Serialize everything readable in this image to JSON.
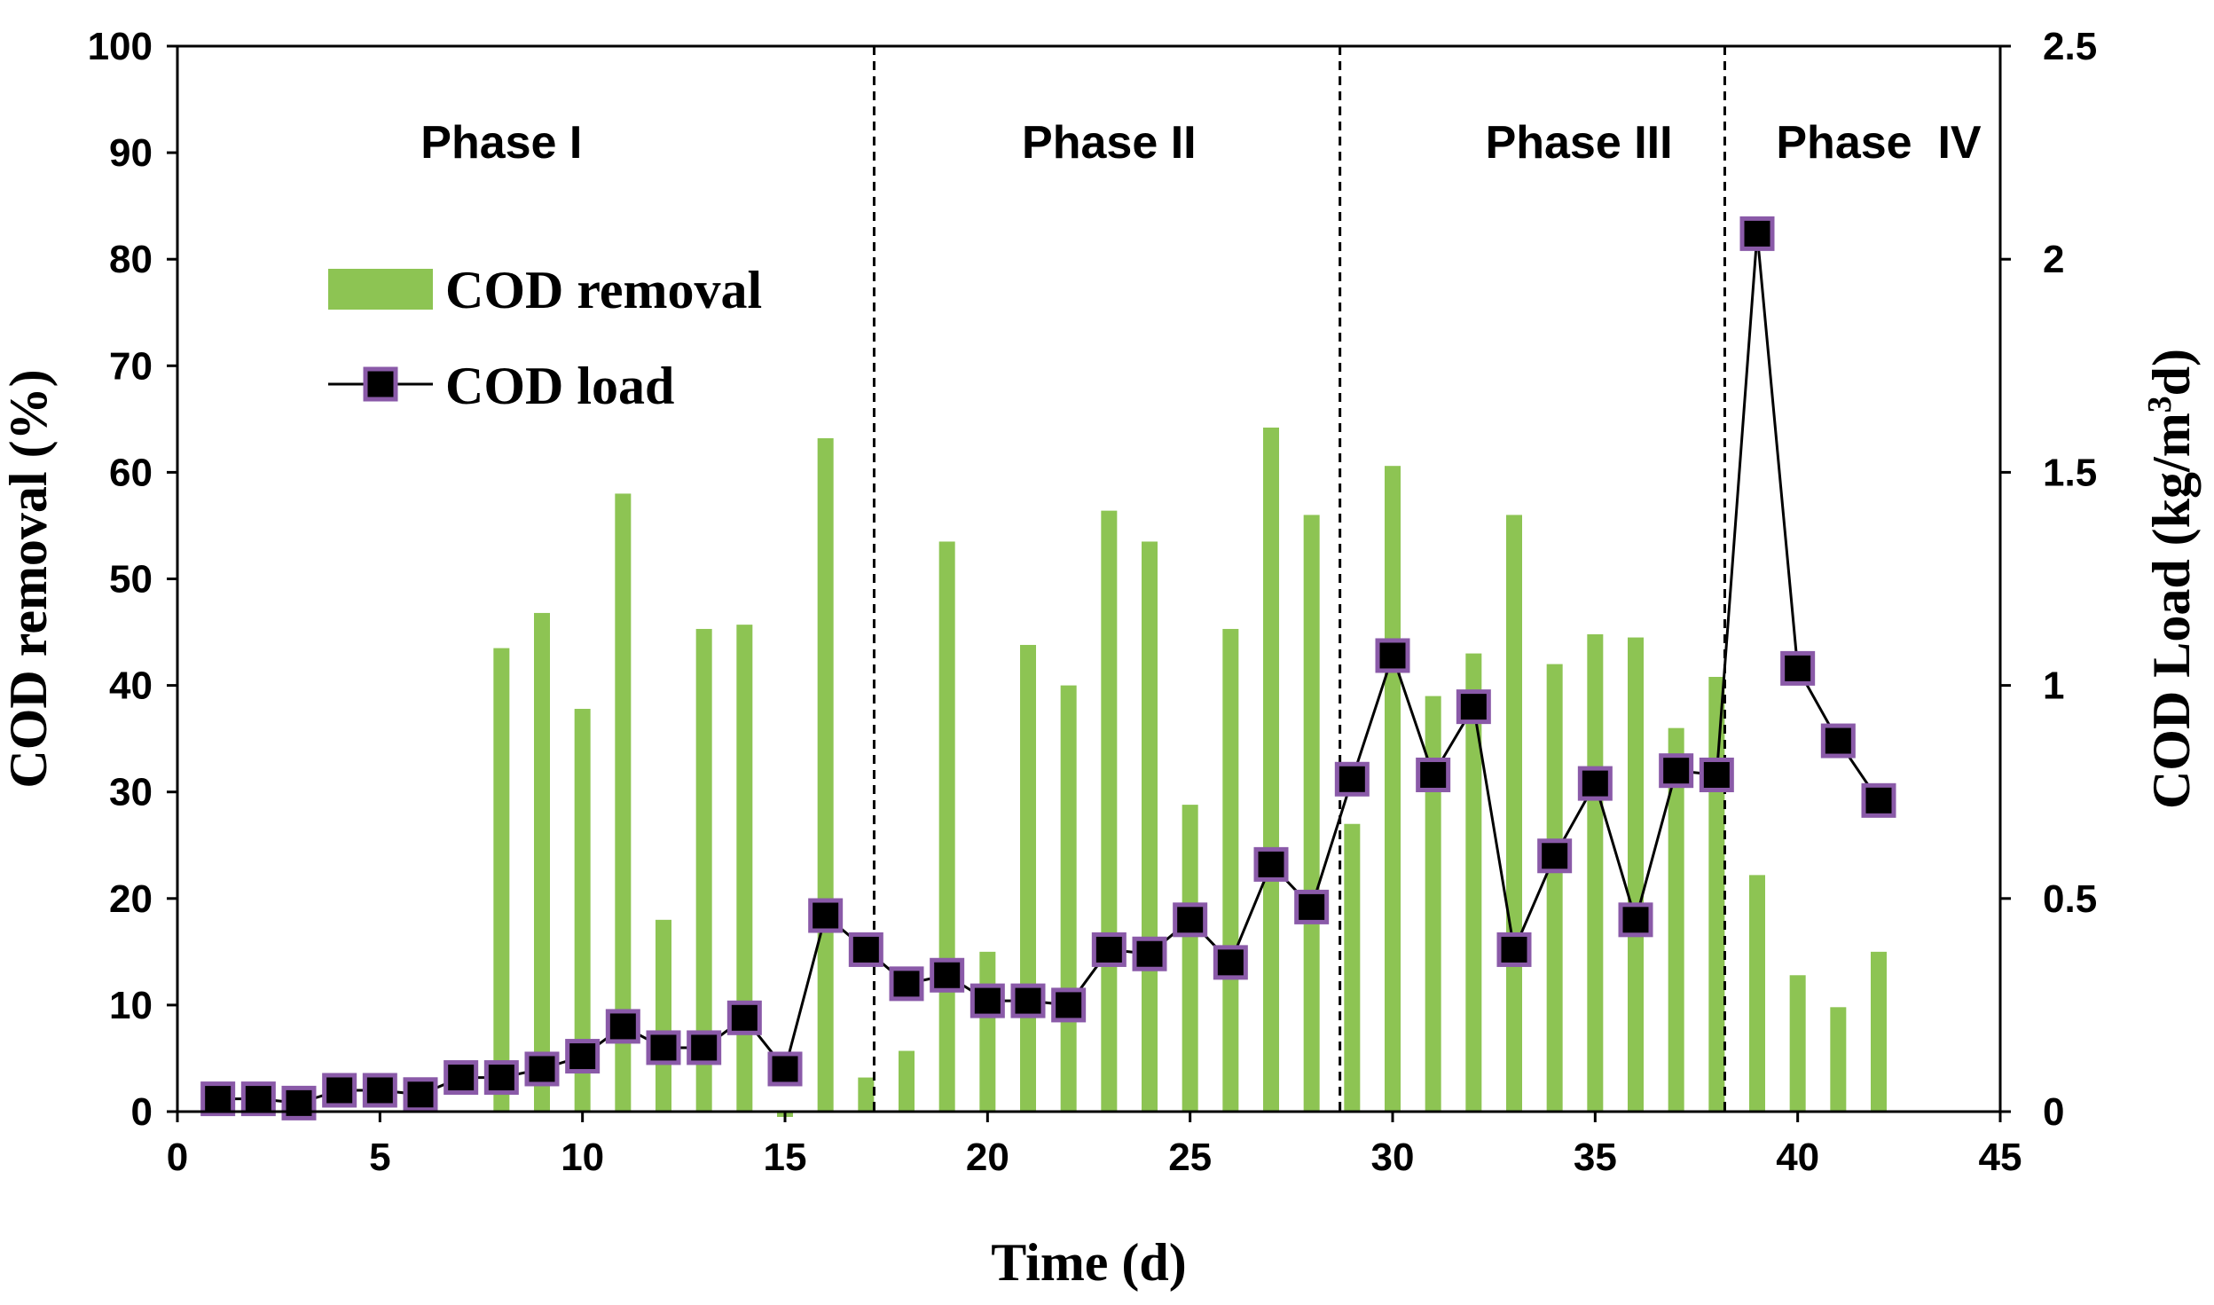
{
  "chart_data": {
    "type": "bar+line",
    "xlabel": "Time (d)",
    "ylabel_left": "COD removal (%)",
    "ylabel_right_prefix": "COD Load (kg/m",
    "ylabel_right_sup": "3",
    "ylabel_right_suffix": "d)",
    "xlim": [
      0,
      45
    ],
    "ylim_left": [
      0,
      100
    ],
    "ylim_right": [
      0,
      2.5
    ],
    "x_ticks": [
      "0",
      "5",
      "10",
      "15",
      "20",
      "25",
      "30",
      "35",
      "40",
      "45"
    ],
    "y_left_ticks": [
      "0",
      "10",
      "20",
      "30",
      "40",
      "50",
      "60",
      "70",
      "80",
      "90",
      "100"
    ],
    "y_right_ticks": [
      "0",
      "0.5",
      "1",
      "1.5",
      "2",
      "2.5"
    ],
    "legend": [
      {
        "name": "COD removal",
        "kind": "bar",
        "color": "#8dc453"
      },
      {
        "name": "COD load",
        "kind": "line-marker",
        "color": "#000000",
        "marker_edge": "#8a5aa8"
      }
    ],
    "legend_position": "upper-left",
    "phases": [
      {
        "label": "Phase I"
      },
      {
        "label": "Phase II"
      },
      {
        "label": "Phase III"
      },
      {
        "label": "Phase  IV"
      }
    ],
    "phase_boundaries_x": [
      17.2,
      28.7,
      38.2
    ],
    "series": [
      {
        "name": "COD removal",
        "axis": "left",
        "x": [
          8,
          9,
          10,
          11,
          12,
          13,
          14,
          15,
          16,
          17,
          18,
          19,
          20,
          21,
          22,
          23,
          24,
          25,
          26,
          27,
          28,
          29,
          30,
          31,
          32,
          33,
          34,
          35,
          36,
          37,
          38,
          39,
          40,
          41,
          42
        ],
        "values": [
          43.5,
          46.8,
          37.8,
          58,
          18,
          45.3,
          45.7,
          -0.5,
          63.2,
          3.2,
          5.7,
          53.5,
          15,
          43.8,
          40,
          56.4,
          53.5,
          28.8,
          45.3,
          64.2,
          56,
          27,
          60.6,
          39,
          43,
          56,
          42,
          44.8,
          44.5,
          36,
          40.8,
          22.2,
          12.8,
          9.8,
          15
        ]
      },
      {
        "name": "COD load",
        "axis": "right",
        "x": [
          1,
          2,
          3,
          4,
          5,
          6,
          7,
          8,
          9,
          10,
          11,
          12,
          13,
          14,
          15,
          16,
          17,
          18,
          19,
          20,
          21,
          22,
          23,
          24,
          25,
          26,
          27,
          28,
          29,
          30,
          31,
          32,
          33,
          34,
          35,
          36,
          37,
          38,
          39,
          40,
          41,
          42
        ],
        "values": [
          0.03,
          0.03,
          0.02,
          0.05,
          0.05,
          0.04,
          0.08,
          0.08,
          0.1,
          0.13,
          0.2,
          0.15,
          0.15,
          0.22,
          0.1,
          0.46,
          0.38,
          0.3,
          0.32,
          0.26,
          0.26,
          0.25,
          0.38,
          0.37,
          0.45,
          0.35,
          0.58,
          0.48,
          0.78,
          1.07,
          0.79,
          0.95,
          0.38,
          0.6,
          0.77,
          0.45,
          0.8,
          0.79,
          2.06,
          1.04,
          0.87,
          0.73
        ]
      }
    ]
  }
}
